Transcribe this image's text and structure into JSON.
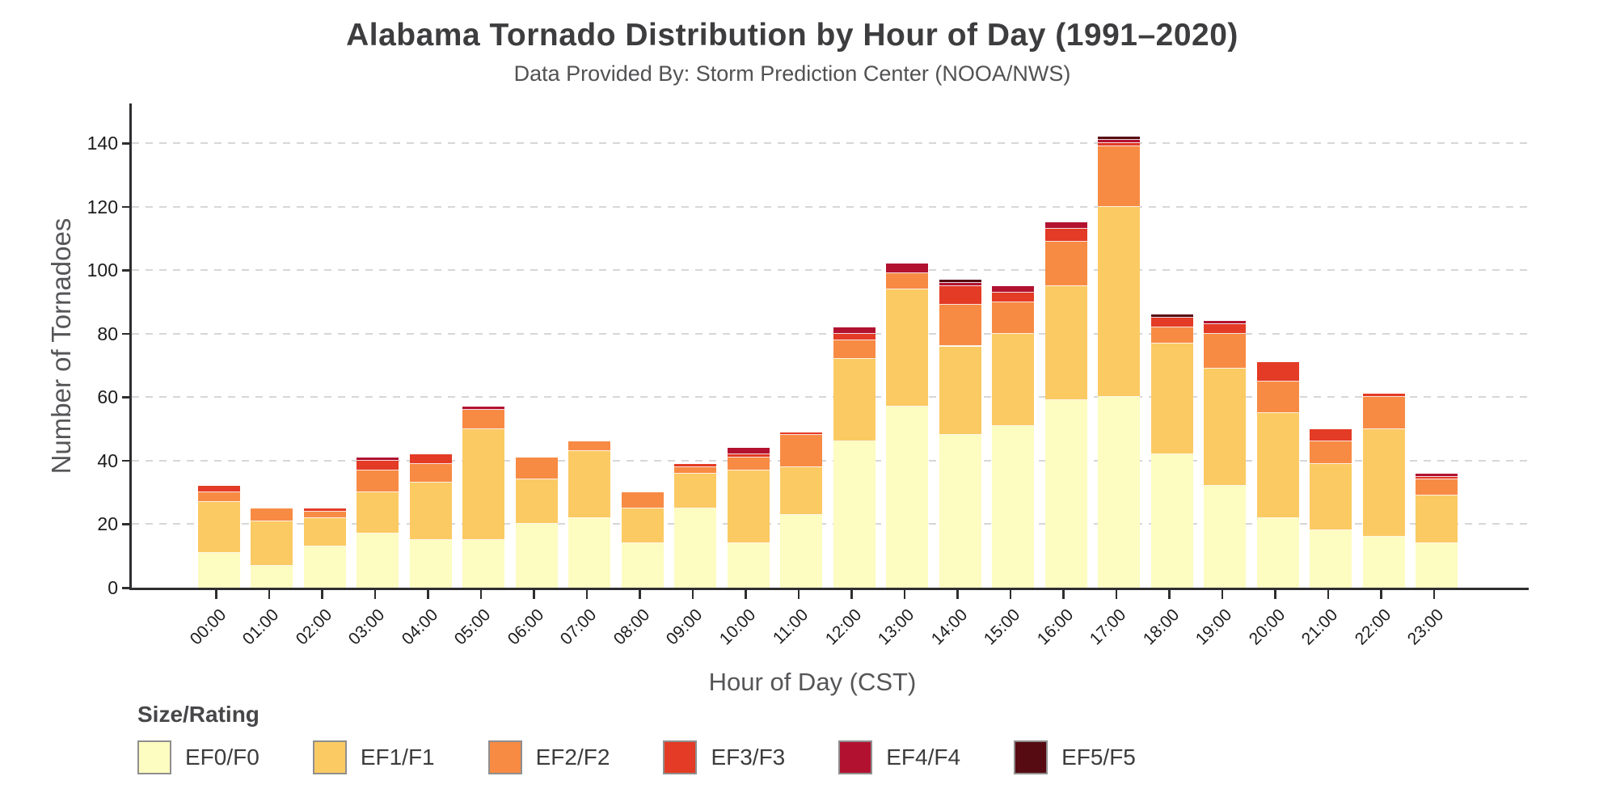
{
  "header": {
    "title": "Alabama Tornado Distribution by Hour of Day (1991–2020)",
    "subtitle": "Data Provided By: Storm Prediction Center (NOOA/NWS)"
  },
  "chart_data": {
    "type": "bar",
    "stacked": true,
    "title": "Alabama Tornado Distribution by Hour of Day (1991–2020)",
    "subtitle": "Data Provided By: Storm Prediction Center (NOOA/NWS)",
    "xlabel": "Hour of Day (CST)",
    "ylabel": "Number of Tornadoes",
    "ylim": [
      0,
      152.5
    ],
    "yticks": [
      0,
      20,
      40,
      60,
      80,
      100,
      120,
      140
    ],
    "grid": "horizontal-dashed",
    "gridline_color": "#d7d7d7",
    "axis_color": "#2e2e30",
    "legend_position": "bottom-left",
    "categories": [
      "00:00",
      "01:00",
      "02:00",
      "03:00",
      "04:00",
      "05:00",
      "06:00",
      "07:00",
      "08:00",
      "09:00",
      "10:00",
      "11:00",
      "12:00",
      "13:00",
      "14:00",
      "15:00",
      "16:00",
      "17:00",
      "18:00",
      "19:00",
      "20:00",
      "21:00",
      "22:00",
      "23:00"
    ],
    "series": [
      {
        "name": "EF0/F0",
        "color": "#FDFCC1",
        "values": [
          11,
          7,
          13,
          17,
          15,
          15,
          20,
          22,
          14,
          25,
          14,
          23,
          46,
          57,
          48,
          51,
          59,
          60,
          42,
          32,
          22,
          18,
          16,
          14
        ]
      },
      {
        "name": "EF1/F1",
        "color": "#FBCA63",
        "values": [
          16,
          14,
          9,
          13,
          18,
          35,
          14,
          21,
          11,
          11,
          23,
          15,
          26,
          37,
          28,
          29,
          36,
          60,
          35,
          37,
          33,
          21,
          34,
          15
        ]
      },
      {
        "name": "EF2/F2",
        "color": "#F78B44",
        "values": [
          3,
          4,
          2,
          7,
          6,
          6,
          7,
          3,
          5,
          2,
          4,
          10,
          6,
          5,
          13,
          10,
          14,
          19,
          5,
          11,
          10,
          7,
          10,
          5
        ]
      },
      {
        "name": "EF3/F3",
        "color": "#E33B25",
        "values": [
          2,
          0,
          1,
          3,
          3,
          0,
          0,
          0,
          0,
          1,
          1,
          1,
          2,
          0,
          6,
          3,
          4,
          1,
          3,
          3,
          6,
          4,
          1,
          1
        ]
      },
      {
        "name": "EF4/F4",
        "color": "#B21230",
        "values": [
          0,
          0,
          0,
          1,
          0,
          1,
          0,
          0,
          0,
          0,
          2,
          0,
          2,
          3,
          1,
          2,
          2,
          1,
          0,
          1,
          0,
          0,
          0,
          1
        ]
      },
      {
        "name": "EF5/F5",
        "color": "#560A12",
        "values": [
          0,
          0,
          0,
          0,
          0,
          0,
          0,
          0,
          0,
          0,
          0,
          0,
          0,
          0,
          1,
          0,
          0,
          1,
          1,
          0,
          0,
          0,
          0,
          0
        ]
      }
    ]
  },
  "legend": {
    "title": "Size/Rating"
  }
}
